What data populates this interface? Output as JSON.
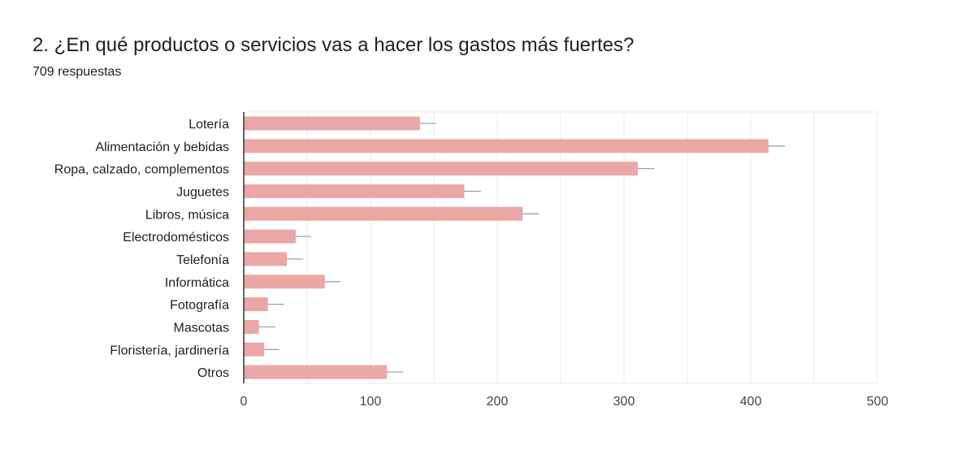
{
  "header": {
    "title": "2. ¿En qué productos o servicios vas a hacer los gastos más fuertes?",
    "responses": "709 respuestas"
  },
  "colors": {
    "bar": "#eba7a6",
    "error_bar": "#999999",
    "grid": "#ebebeb",
    "axis": "#333333"
  },
  "chart_data": {
    "type": "bar",
    "orientation": "horizontal",
    "categories": [
      "Lotería",
      "Alimentación y bebidas",
      "Ropa, calzado, complementos",
      "Juguetes",
      "Libros, música",
      "Electrodomésticos",
      "Telefonía",
      "Informática",
      "Fotografía",
      "Mascotas",
      "Floristería, jardinería",
      "Otros"
    ],
    "values": [
      139,
      414,
      311,
      174,
      220,
      41,
      34,
      64,
      19,
      12,
      16,
      113
    ],
    "error_upper": [
      152,
      427,
      324,
      187,
      233,
      53,
      47,
      76,
      32,
      25,
      28,
      126
    ],
    "xlim": [
      0,
      500
    ],
    "xticks": [
      0,
      100,
      200,
      300,
      400,
      500
    ],
    "xtick_labels": [
      "0",
      "100",
      "200",
      "300",
      "400",
      "500"
    ],
    "grid": true
  }
}
